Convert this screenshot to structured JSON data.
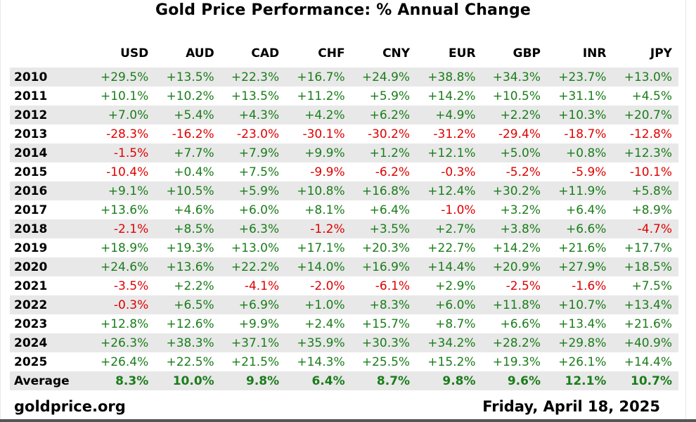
{
  "chart_data": {
    "type": "table",
    "title": "Gold Price Performance: % Annual Change",
    "columns": [
      "USD",
      "AUD",
      "CAD",
      "CHF",
      "CNY",
      "EUR",
      "GBP",
      "INR",
      "JPY"
    ],
    "rows": [
      {
        "label": "2010",
        "values": [
          "+29.5%",
          "+13.5%",
          "+22.3%",
          "+16.7%",
          "+24.9%",
          "+38.8%",
          "+34.3%",
          "+23.7%",
          "+13.0%"
        ]
      },
      {
        "label": "2011",
        "values": [
          "+10.1%",
          "+10.2%",
          "+13.5%",
          "+11.2%",
          "+5.9%",
          "+14.2%",
          "+10.5%",
          "+31.1%",
          "+4.5%"
        ]
      },
      {
        "label": "2012",
        "values": [
          "+7.0%",
          "+5.4%",
          "+4.3%",
          "+4.2%",
          "+6.2%",
          "+4.9%",
          "+2.2%",
          "+10.3%",
          "+20.7%"
        ]
      },
      {
        "label": "2013",
        "values": [
          "-28.3%",
          "-16.2%",
          "-23.0%",
          "-30.1%",
          "-30.2%",
          "-31.2%",
          "-29.4%",
          "-18.7%",
          "-12.8%"
        ]
      },
      {
        "label": "2014",
        "values": [
          "-1.5%",
          "+7.7%",
          "+7.9%",
          "+9.9%",
          "+1.2%",
          "+12.1%",
          "+5.0%",
          "+0.8%",
          "+12.3%"
        ]
      },
      {
        "label": "2015",
        "values": [
          "-10.4%",
          "+0.4%",
          "+7.5%",
          "-9.9%",
          "-6.2%",
          "-0.3%",
          "-5.2%",
          "-5.9%",
          "-10.1%"
        ]
      },
      {
        "label": "2016",
        "values": [
          "+9.1%",
          "+10.5%",
          "+5.9%",
          "+10.8%",
          "+16.8%",
          "+12.4%",
          "+30.2%",
          "+11.9%",
          "+5.8%"
        ]
      },
      {
        "label": "2017",
        "values": [
          "+13.6%",
          "+4.6%",
          "+6.0%",
          "+8.1%",
          "+6.4%",
          "-1.0%",
          "+3.2%",
          "+6.4%",
          "+8.9%"
        ]
      },
      {
        "label": "2018",
        "values": [
          "-2.1%",
          "+8.5%",
          "+6.3%",
          "-1.2%",
          "+3.5%",
          "+2.7%",
          "+3.8%",
          "+6.6%",
          "-4.7%"
        ]
      },
      {
        "label": "2019",
        "values": [
          "+18.9%",
          "+19.3%",
          "+13.0%",
          "+17.1%",
          "+20.3%",
          "+22.7%",
          "+14.2%",
          "+21.6%",
          "+17.7%"
        ]
      },
      {
        "label": "2020",
        "values": [
          "+24.6%",
          "+13.6%",
          "+22.2%",
          "+14.0%",
          "+16.9%",
          "+14.4%",
          "+20.9%",
          "+27.9%",
          "+18.5%"
        ]
      },
      {
        "label": "2021",
        "values": [
          "-3.5%",
          "+2.2%",
          "-4.1%",
          "-2.0%",
          "-6.1%",
          "+2.9%",
          "-2.5%",
          "-1.6%",
          "+7.5%"
        ]
      },
      {
        "label": "2022",
        "values": [
          "-0.3%",
          "+6.5%",
          "+6.9%",
          "+1.0%",
          "+8.3%",
          "+6.0%",
          "+11.8%",
          "+10.7%",
          "+13.4%"
        ]
      },
      {
        "label": "2023",
        "values": [
          "+12.8%",
          "+12.6%",
          "+9.9%",
          "+2.4%",
          "+15.7%",
          "+8.7%",
          "+6.6%",
          "+13.4%",
          "+21.6%"
        ]
      },
      {
        "label": "2024",
        "values": [
          "+26.3%",
          "+38.3%",
          "+37.1%",
          "+35.9%",
          "+30.3%",
          "+34.2%",
          "+28.2%",
          "+29.8%",
          "+40.9%"
        ]
      },
      {
        "label": "2025",
        "values": [
          "+26.4%",
          "+22.5%",
          "+21.5%",
          "+14.3%",
          "+25.5%",
          "+15.2%",
          "+19.3%",
          "+26.1%",
          "+14.4%"
        ]
      }
    ],
    "average": {
      "label": "Average",
      "values": [
        "8.3%",
        "10.0%",
        "9.8%",
        "6.4%",
        "8.7%",
        "9.8%",
        "9.6%",
        "12.1%",
        "10.7%"
      ]
    },
    "colors": {
      "positive": "#1a7d1a",
      "negative": "#e00000",
      "stripe": "#e8e8e8"
    }
  },
  "footer": {
    "source": "goldprice.org",
    "date": "Friday, April 18, 2025"
  }
}
